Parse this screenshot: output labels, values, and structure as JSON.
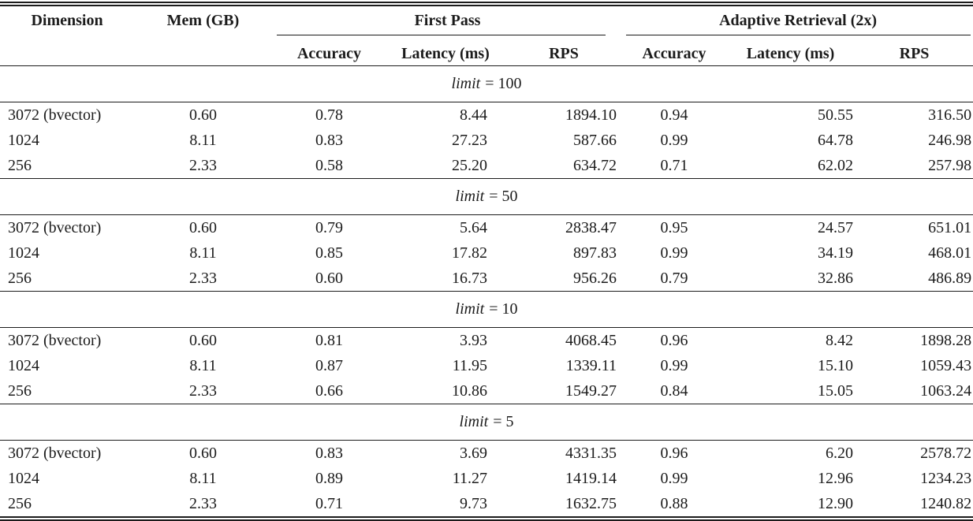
{
  "table": {
    "headers": {
      "dimension": "Dimension",
      "mem": "Mem (GB)",
      "group_first_pass": "First Pass",
      "group_adaptive": "Adaptive Retrieval (2x)",
      "sub": [
        "Accuracy",
        "Latency (ms)",
        "RPS",
        "Accuracy",
        "Latency (ms)",
        "RPS"
      ]
    },
    "sections": [
      {
        "limit_label": "limit",
        "limit_value": "= 100",
        "rows": [
          [
            "3072 (bvector)",
            "0.60",
            "0.78",
            "8.44",
            "1894.10",
            "0.94",
            "50.55",
            "316.50"
          ],
          [
            "1024",
            "8.11",
            "0.83",
            "27.23",
            "587.66",
            "0.99",
            "64.78",
            "246.98"
          ],
          [
            "256",
            "2.33",
            "0.58",
            "25.20",
            "634.72",
            "0.71",
            "62.02",
            "257.98"
          ]
        ]
      },
      {
        "limit_label": "limit",
        "limit_value": "= 50",
        "rows": [
          [
            "3072 (bvector)",
            "0.60",
            "0.79",
            "5.64",
            "2838.47",
            "0.95",
            "24.57",
            "651.01"
          ],
          [
            "1024",
            "8.11",
            "0.85",
            "17.82",
            "897.83",
            "0.99",
            "34.19",
            "468.01"
          ],
          [
            "256",
            "2.33",
            "0.60",
            "16.73",
            "956.26",
            "0.79",
            "32.86",
            "486.89"
          ]
        ]
      },
      {
        "limit_label": "limit",
        "limit_value": "= 10",
        "rows": [
          [
            "3072 (bvector)",
            "0.60",
            "0.81",
            "3.93",
            "4068.45",
            "0.96",
            "8.42",
            "1898.28"
          ],
          [
            "1024",
            "8.11",
            "0.87",
            "11.95",
            "1339.11",
            "0.99",
            "15.10",
            "1059.43"
          ],
          [
            "256",
            "2.33",
            "0.66",
            "10.86",
            "1549.27",
            "0.84",
            "15.05",
            "1063.24"
          ]
        ]
      },
      {
        "limit_label": "limit",
        "limit_value": "= 5",
        "rows": [
          [
            "3072 (bvector)",
            "0.60",
            "0.83",
            "3.69",
            "4331.35",
            "0.96",
            "6.20",
            "2578.72"
          ],
          [
            "1024",
            "8.11",
            "0.89",
            "11.27",
            "1419.14",
            "0.99",
            "12.96",
            "1234.23"
          ],
          [
            "256",
            "2.33",
            "0.71",
            "9.73",
            "1632.75",
            "0.88",
            "12.90",
            "1240.82"
          ]
        ]
      }
    ],
    "rule_color": "#1b1b1b"
  }
}
